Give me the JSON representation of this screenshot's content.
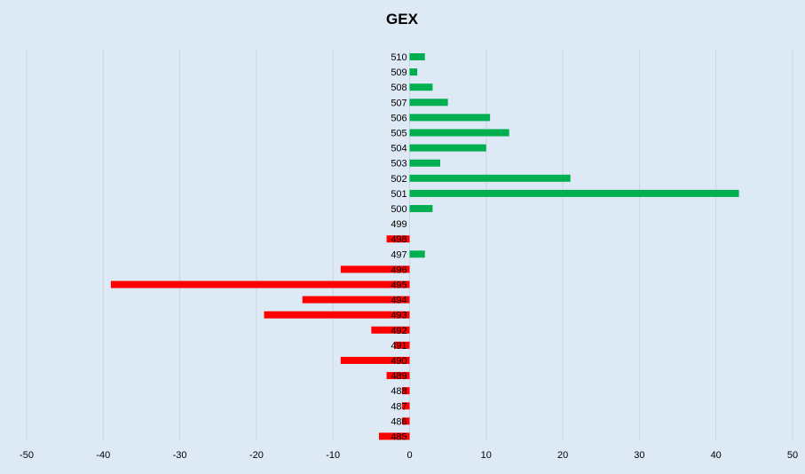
{
  "chart_data": {
    "type": "bar",
    "orientation": "horizontal",
    "title": "GEX",
    "xlabel": "",
    "ylabel": "",
    "xlim": [
      -50,
      50
    ],
    "xticks": [
      -50,
      -40,
      -30,
      -20,
      -10,
      0,
      10,
      20,
      30,
      40,
      50
    ],
    "grid": true,
    "legend": "none",
    "colors": {
      "positive": "#00b050",
      "negative": "#ff0000",
      "background": "#dde9f5",
      "grid": "#c9d6e3"
    },
    "categories": [
      "510",
      "509",
      "508",
      "507",
      "506",
      "505",
      "504",
      "503",
      "502",
      "501",
      "500",
      "499",
      "498",
      "497",
      "496",
      "495",
      "494",
      "493",
      "492",
      "491",
      "490",
      "489",
      "488",
      "487",
      "486",
      "485"
    ],
    "values": [
      2,
      1,
      3,
      5,
      10.5,
      13,
      10,
      4,
      21,
      43,
      3,
      0,
      -3,
      2,
      -9,
      -39,
      -14,
      -19,
      -5,
      -2,
      -9,
      -3,
      -1,
      -1,
      -1,
      -4
    ]
  }
}
